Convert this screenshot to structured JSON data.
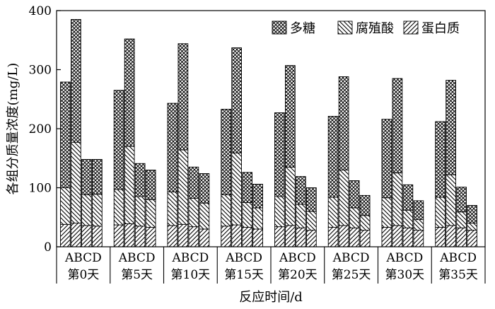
{
  "chart_data": {
    "type": "bar",
    "stacked": true,
    "title": "",
    "xlabel": "反应时间/d",
    "ylabel": "各组分质量浓度(mg/L)",
    "ylim": [
      0,
      400
    ],
    "yticks": [
      0,
      100,
      200,
      300,
      400
    ],
    "grid": false,
    "legend_position": "top-right",
    "groups": [
      "第0天",
      "第5天",
      "第10天",
      "第15天",
      "第20天",
      "第25天",
      "第30天",
      "第35天"
    ],
    "sub_categories": [
      "A",
      "B",
      "C",
      "D"
    ],
    "sub_category_label": "ABCD",
    "series": [
      {
        "name": "蛋白质",
        "pattern": "diagonal-hatch",
        "values": [
          [
            38,
            40,
            36,
            35
          ],
          [
            37,
            39,
            35,
            33
          ],
          [
            36,
            38,
            34,
            30
          ],
          [
            35,
            37,
            33,
            30
          ],
          [
            34,
            36,
            32,
            28
          ],
          [
            33,
            36,
            32,
            28
          ],
          [
            33,
            36,
            32,
            28
          ],
          [
            33,
            36,
            32,
            28
          ]
        ]
      },
      {
        "name": "腐殖酸",
        "pattern": "reverse-diagonal-hatch",
        "values": [
          [
            62,
            137,
            52,
            54
          ],
          [
            60,
            131,
            50,
            47
          ],
          [
            57,
            126,
            48,
            44
          ],
          [
            53,
            122,
            42,
            36
          ],
          [
            51,
            99,
            40,
            32
          ],
          [
            51,
            94,
            34,
            25
          ],
          [
            50,
            89,
            30,
            18
          ],
          [
            51,
            86,
            27,
            12
          ]
        ]
      },
      {
        "name": "多糖",
        "pattern": "cross-hatch",
        "values": [
          [
            179,
            208,
            60,
            59
          ],
          [
            168,
            182,
            56,
            50
          ],
          [
            150,
            180,
            53,
            50
          ],
          [
            145,
            178,
            51,
            40
          ],
          [
            142,
            172,
            47,
            40
          ],
          [
            137,
            158,
            46,
            34
          ],
          [
            133,
            160,
            43,
            32
          ],
          [
            128,
            160,
            42,
            30
          ]
        ]
      }
    ]
  }
}
